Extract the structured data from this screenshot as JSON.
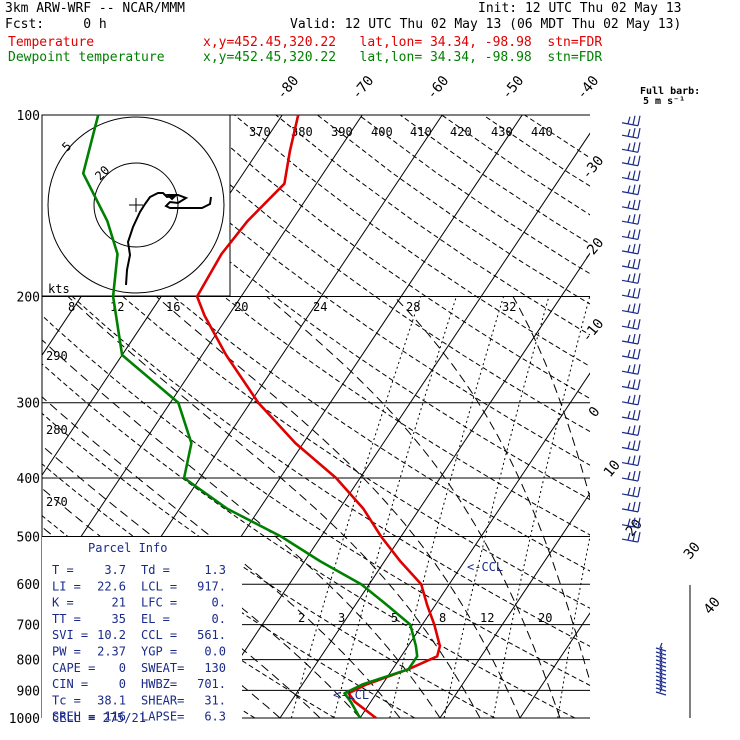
{
  "header": {
    "model": "3km ARW-WRF -- NCAR/MMM",
    "init": "Init: 12 UTC Thu 02 May 13",
    "fcst": "Fcst:     0 h",
    "valid": "Valid: 12 UTC Thu 02 May 13 (06 MDT Thu 02 May 13)",
    "temp_label": "Temperature",
    "temp_loc": "x,y=452.45,320.22   lat,lon= 34.34, -98.98  stn=FDR",
    "dew_label": "Dewpoint temperature",
    "dew_loc": "x,y=452.45,320.22   lat,lon= 34.34, -98.98  stn=FDR"
  },
  "colors": {
    "temperature": "#e00000",
    "dewpoint": "#008000",
    "wind": "#1a2a8a",
    "parcel_text": "#1a2a8a"
  },
  "barb_legend": {
    "title": "Full barb:",
    "value": "5 m s⁻¹"
  },
  "hodograph": {
    "unit_label": "kts",
    "ring_labels": [
      "20",
      "5"
    ]
  },
  "chart_data": {
    "type": "skew-t log-p",
    "y_axis": {
      "scale": "log",
      "pressure_hpa_ticks": [
        100,
        200,
        300,
        400,
        500,
        600,
        700,
        800,
        900,
        1000
      ],
      "labels": [
        "100",
        "200",
        "300",
        "400",
        "500",
        "600",
        "700",
        "800",
        "900",
        "1000"
      ]
    },
    "isotherm_labels_c": [
      "-80",
      "-70",
      "-60",
      "-50",
      "-40",
      "-30",
      "-20",
      "-10",
      "0",
      "10",
      "20",
      "30",
      "40"
    ],
    "theta_labels_upper": [
      "370",
      "380",
      "390",
      "400",
      "410",
      "420",
      "430",
      "440"
    ],
    "theta_labels_lower": [
      "290",
      "280",
      "270"
    ],
    "mixing_ratio_labels_upper": [
      "8",
      "12",
      "16",
      "20",
      "24",
      "28",
      "32"
    ],
    "mixing_ratio_labels_lower": [
      "2",
      "3",
      "5",
      "8",
      "12",
      "20"
    ],
    "annotations": [
      "<-CCL",
      "<-LCL"
    ],
    "series": [
      {
        "name": "Temperature",
        "points": [
          {
            "p": 1000,
            "t": 2.0
          },
          {
            "p": 940,
            "t": -2.0
          },
          {
            "p": 910,
            "t": -3.5
          },
          {
            "p": 880,
            "t": -2.0
          },
          {
            "p": 830,
            "t": 2.0
          },
          {
            "p": 790,
            "t": 4.5
          },
          {
            "p": 760,
            "t": 4.0
          },
          {
            "p": 700,
            "t": 1.5
          },
          {
            "p": 650,
            "t": -1.0
          },
          {
            "p": 600,
            "t": -3.5
          },
          {
            "p": 550,
            "t": -8.0
          },
          {
            "p": 500,
            "t": -12.5
          },
          {
            "p": 450,
            "t": -17.0
          },
          {
            "p": 400,
            "t": -23.0
          },
          {
            "p": 350,
            "t": -31.0
          },
          {
            "p": 300,
            "t": -39.0
          },
          {
            "p": 250,
            "t": -47.0
          },
          {
            "p": 215,
            "t": -53.0
          },
          {
            "p": 200,
            "t": -55.5
          },
          {
            "p": 170,
            "t": -56.0
          },
          {
            "p": 150,
            "t": -55.5
          },
          {
            "p": 130,
            "t": -54.0
          },
          {
            "p": 115,
            "t": -56.0
          },
          {
            "p": 100,
            "t": -58.0
          }
        ]
      },
      {
        "name": "Dewpoint temperature",
        "points": [
          {
            "p": 1000,
            "t": 0.0
          },
          {
            "p": 940,
            "t": -2.5
          },
          {
            "p": 910,
            "t": -4.0
          },
          {
            "p": 880,
            "t": -2.5
          },
          {
            "p": 830,
            "t": 2.0
          },
          {
            "p": 790,
            "t": 2.0
          },
          {
            "p": 760,
            "t": 1.0
          },
          {
            "p": 700,
            "t": -1.5
          },
          {
            "p": 650,
            "t": -6.0
          },
          {
            "p": 600,
            "t": -11.0
          },
          {
            "p": 550,
            "t": -18.0
          },
          {
            "p": 500,
            "t": -25.0
          },
          {
            "p": 450,
            "t": -34.0
          },
          {
            "p": 400,
            "t": -42.0
          },
          {
            "p": 350,
            "t": -44.0
          },
          {
            "p": 300,
            "t": -49.0
          },
          {
            "p": 250,
            "t": -60.0
          },
          {
            "p": 200,
            "t": -66.0
          },
          {
            "p": 170,
            "t": -69.0
          },
          {
            "p": 150,
            "t": -73.0
          },
          {
            "p": 125,
            "t": -80.0
          },
          {
            "p": 100,
            "t": -83.0
          }
        ]
      }
    ],
    "wind_profile_hpa": [
      103,
      108,
      114,
      120,
      127,
      134,
      142,
      150,
      159,
      168,
      178,
      188,
      199,
      211,
      224,
      237,
      251,
      266,
      282,
      299,
      317,
      336,
      356,
      377,
      400,
      425,
      450,
      478,
      505
    ]
  },
  "parcel": {
    "title": "Parcel Info",
    "rows": [
      {
        "k1": "T    =",
        "v1": "3.7",
        "k2": "Td  =",
        "v2": "1.3"
      },
      {
        "k1": "LI   =",
        "v1": "22.6",
        "k2": "LCL =",
        "v2": "917."
      },
      {
        "k1": "K    =",
        "v1": "21",
        "k2": "LFC =",
        "v2": "0."
      },
      {
        "k1": "TT   =",
        "v1": "35",
        "k2": "EL  =",
        "v2": "0."
      },
      {
        "k1": "SVI  =",
        "v1": "10.2",
        "k2": "CCL =",
        "v2": "561."
      },
      {
        "k1": "PW   =",
        "v1": "2.37",
        "k2": "YGP =",
        "v2": "0.0"
      },
      {
        "k1": "CAPE =",
        "v1": "0",
        "k2": "SWEAT=",
        "v2": "130"
      },
      {
        "k1": "CIN  =",
        "v1": "0",
        "k2": "HWBZ=",
        "v2": "701."
      },
      {
        "k1": "Tc   =",
        "v1": "38.1",
        "k2": "SHEAR=",
        "v2": "31."
      },
      {
        "k1": "SREH =",
        "v1": "116",
        "k2": "LAPSE=",
        "v2": "6.3"
      }
    ],
    "cell": "CELL = 275/21"
  }
}
